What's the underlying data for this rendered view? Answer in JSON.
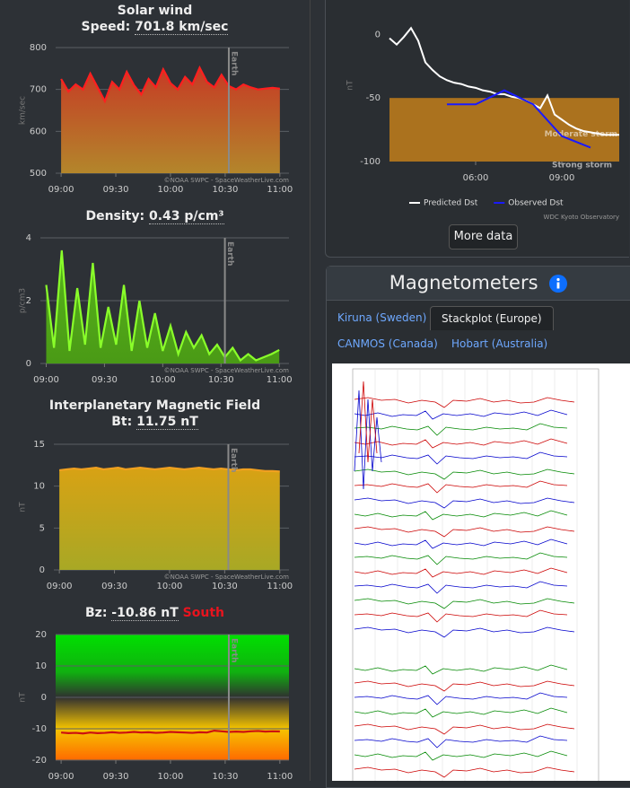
{
  "chart_data": [
    {
      "type": "area",
      "title": "Solar wind",
      "label": "Speed:",
      "value_text": "701.8 km/sec",
      "y_label": "km/sec",
      "x": [
        "09:00",
        "09:04",
        "09:08",
        "09:12",
        "09:16",
        "09:20",
        "09:24",
        "09:28",
        "09:32",
        "09:36",
        "09:40",
        "09:44",
        "09:48",
        "09:52",
        "09:56",
        "10:00",
        "10:04",
        "10:08",
        "10:12",
        "10:16",
        "10:20",
        "10:24",
        "10:28",
        "10:32",
        "10:36",
        "10:40",
        "10:44",
        "10:48",
        "10:52",
        "10:56",
        "11:00"
      ],
      "values": [
        725,
        695,
        712,
        700,
        738,
        705,
        672,
        718,
        700,
        742,
        710,
        688,
        725,
        705,
        748,
        715,
        700,
        730,
        712,
        752,
        718,
        705,
        735,
        708,
        700,
        712,
        705,
        700,
        702,
        704,
        701.8
      ],
      "color": "#ff1f1f",
      "area_colors": [
        "#c63a25",
        "#b3862b"
      ],
      "xlim": [
        "08:57",
        "11:05"
      ],
      "xticks": [
        "09:00",
        "09:30",
        "10:00",
        "10:30",
        "11:00"
      ],
      "ylim": [
        500,
        800
      ],
      "yticks": [
        500,
        600,
        700,
        800
      ],
      "grid": true,
      "marker": {
        "text": "Earth",
        "x": "10:32"
      },
      "credit": "©NOAA SWPC - SpaceWeatherLive.com"
    },
    {
      "type": "area",
      "label": "Density:",
      "value_text": "0.43 p/cm³",
      "y_label": "p/cm3",
      "x": [
        "09:00",
        "09:04",
        "09:08",
        "09:12",
        "09:16",
        "09:20",
        "09:24",
        "09:28",
        "09:32",
        "09:36",
        "09:40",
        "09:44",
        "09:48",
        "09:52",
        "09:56",
        "10:00",
        "10:04",
        "10:08",
        "10:12",
        "10:16",
        "10:20",
        "10:24",
        "10:28",
        "10:32",
        "10:36",
        "10:40",
        "10:44",
        "10:48",
        "10:52",
        "10:56",
        "11:00"
      ],
      "values": [
        2.5,
        0.5,
        3.6,
        0.4,
        2.4,
        0.6,
        3.2,
        0.5,
        1.8,
        0.6,
        2.5,
        0.4,
        2.0,
        0.5,
        1.6,
        0.4,
        1.2,
        0.3,
        1.0,
        0.5,
        0.9,
        0.3,
        0.6,
        0.2,
        0.5,
        0.1,
        0.3,
        0.1,
        0.2,
        0.3,
        0.43
      ],
      "color": "#8aff2a",
      "area_colors": [
        "#58b51b",
        "#4a9a16"
      ],
      "xlim": [
        "08:57",
        "11:05"
      ],
      "xticks": [
        "09:00",
        "09:30",
        "10:00",
        "10:30",
        "11:00"
      ],
      "ylim": [
        0,
        4
      ],
      "yticks": [
        0,
        2,
        4
      ],
      "grid": true,
      "marker": {
        "text": "Earth",
        "x": "10:32"
      },
      "credit": "©NOAA SWPC - SpaceWeatherLive.com"
    },
    {
      "type": "area",
      "title": "Interplanetary Magnetic Field",
      "label": "Bt:",
      "value_text": "11.75 nT",
      "y_label": "nT",
      "x": [
        "09:00",
        "09:04",
        "09:08",
        "09:12",
        "09:16",
        "09:20",
        "09:24",
        "09:28",
        "09:32",
        "09:36",
        "09:40",
        "09:44",
        "09:48",
        "09:52",
        "09:56",
        "10:00",
        "10:04",
        "10:08",
        "10:12",
        "10:16",
        "10:20",
        "10:24",
        "10:28",
        "10:32",
        "10:36",
        "10:40",
        "10:44",
        "10:48",
        "10:52",
        "10:56",
        "11:00"
      ],
      "values": [
        11.9,
        12.0,
        12.1,
        12.0,
        12.1,
        12.2,
        12.0,
        12.1,
        12.2,
        12.0,
        12.1,
        12.2,
        12.1,
        12.0,
        12.1,
        12.2,
        12.1,
        12.0,
        12.1,
        12.2,
        12.1,
        12.0,
        12.1,
        12.0,
        11.9,
        12.0,
        12.0,
        11.9,
        11.8,
        11.8,
        11.75
      ],
      "color": "#f0a020",
      "area_colors": [
        "#d8a214",
        "#a8a825"
      ],
      "xlim": [
        "08:57",
        "11:05"
      ],
      "xticks": [
        "09:00",
        "09:30",
        "10:00",
        "10:30",
        "11:00"
      ],
      "ylim": [
        0,
        15
      ],
      "yticks": [
        0,
        5,
        10,
        15
      ],
      "grid": true,
      "marker": {
        "text": "Earth",
        "x": "10:32"
      },
      "credit": "©NOAA SWPC - SpaceWeatherLive.com"
    },
    {
      "type": "line",
      "label": "Bz:",
      "value_text": "-10.86 nT",
      "status": "South",
      "status_color": "#e8141e",
      "y_label": "nT",
      "x": [
        "09:00",
        "09:04",
        "09:08",
        "09:12",
        "09:16",
        "09:20",
        "09:24",
        "09:28",
        "09:32",
        "09:36",
        "09:40",
        "09:44",
        "09:48",
        "09:52",
        "09:56",
        "10:00",
        "10:04",
        "10:08",
        "10:12",
        "10:16",
        "10:20",
        "10:24",
        "10:28",
        "10:32",
        "10:36",
        "10:40",
        "10:44",
        "10:48",
        "10:52",
        "10:56",
        "11:00"
      ],
      "values": [
        -11.2,
        -11.4,
        -11.3,
        -11.5,
        -11.2,
        -11.4,
        -11.3,
        -11.1,
        -11.3,
        -11.2,
        -11.0,
        -11.2,
        -11.1,
        -11.3,
        -11.2,
        -11.0,
        -11.1,
        -11.2,
        -11.3,
        -11.1,
        -11.2,
        -10.6,
        -10.8,
        -11.0,
        -10.9,
        -11.0,
        -10.8,
        -10.7,
        -10.9,
        -10.8,
        -10.86
      ],
      "color": "#cc1010",
      "xlim": [
        "08:57",
        "11:05"
      ],
      "xticks": [
        "09:00",
        "09:30",
        "10:00",
        "10:30",
        "11:00"
      ],
      "ylim": [
        -20,
        20
      ],
      "yticks": [
        -20,
        -10,
        0,
        10,
        20
      ],
      "grid": true,
      "marker": {
        "text": "Earth",
        "x": "10:32"
      }
    },
    {
      "type": "line",
      "y_label": "nT",
      "xlim": [
        "03:00",
        "11:00"
      ],
      "xticks": [
        "06:00",
        "09:00"
      ],
      "ylim": [
        -100,
        20
      ],
      "yticks": [
        -100,
        -50,
        0
      ],
      "grid": false,
      "bands": [
        {
          "label": "Moderate storm",
          "from": -50,
          "to": -100,
          "color": "#b97a1c"
        }
      ],
      "annotations": [
        {
          "text": "Strong storm",
          "y": -100
        }
      ],
      "series": [
        {
          "name": "Predicted Dst",
          "color": "#ffffff",
          "x": [
            "03:00",
            "03:15",
            "03:30",
            "03:45",
            "04:00",
            "04:15",
            "04:30",
            "04:45",
            "05:00",
            "05:15",
            "05:30",
            "05:45",
            "06:00",
            "06:15",
            "06:30",
            "06:45",
            "07:00",
            "07:15",
            "07:30",
            "07:45",
            "08:00",
            "08:15",
            "08:30",
            "08:45",
            "09:00",
            "09:15",
            "09:30",
            "09:45",
            "10:00",
            "10:15",
            "10:30",
            "10:45",
            "11:00"
          ],
          "values": [
            -3,
            -8,
            -2,
            5,
            -5,
            -22,
            -28,
            -33,
            -36,
            -38,
            -39,
            -41,
            -42,
            -44,
            -45,
            -47,
            -47,
            -49,
            -50,
            -52,
            -55,
            -58,
            -48,
            -63,
            -67,
            -71,
            -74,
            -76,
            -77,
            -78,
            -79,
            -79,
            -79
          ]
        },
        {
          "name": "Observed Dst",
          "color": "#1a1aff",
          "x": [
            "05:00",
            "06:00",
            "07:00",
            "08:00",
            "09:00",
            "10:00"
          ],
          "values": [
            -55,
            -55,
            -44,
            -55,
            -80,
            -89
          ]
        }
      ],
      "credit": "WDC Kyoto Observatory"
    }
  ],
  "more_data_button": "More data",
  "magnetometers": {
    "title": "Magnetometers",
    "tabs": [
      {
        "label": "Kiruna (Sweden)",
        "active": false
      },
      {
        "label": "Stackplot (Europe)",
        "active": true
      },
      {
        "label": "CANMOS (Canada)",
        "active": false
      },
      {
        "label": "Hobart (Australia)",
        "active": false
      }
    ]
  }
}
